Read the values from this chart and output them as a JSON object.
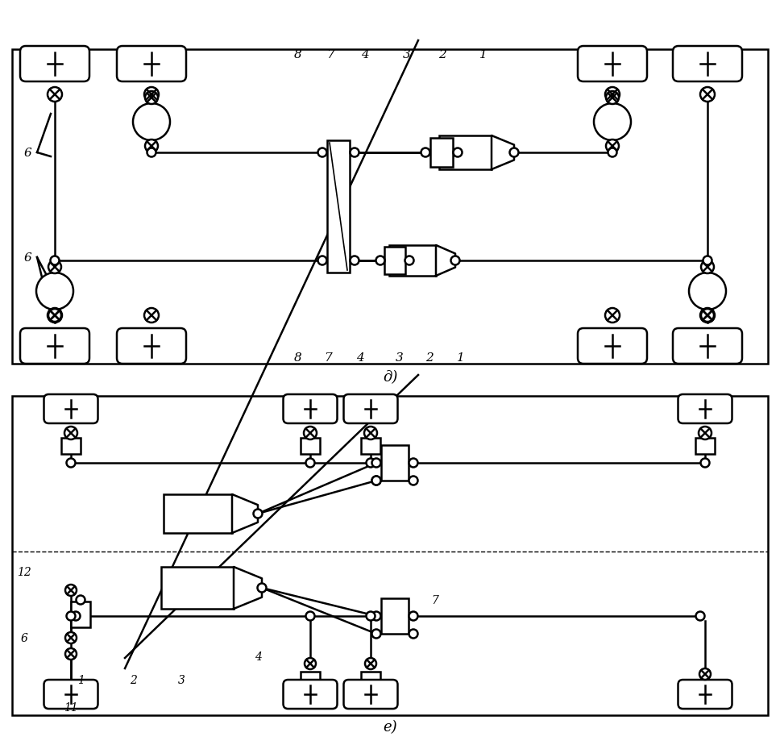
{
  "title_d": "д)",
  "title_e": "е)",
  "lc": "#000000",
  "lw": 1.8,
  "tlw": 1.2
}
